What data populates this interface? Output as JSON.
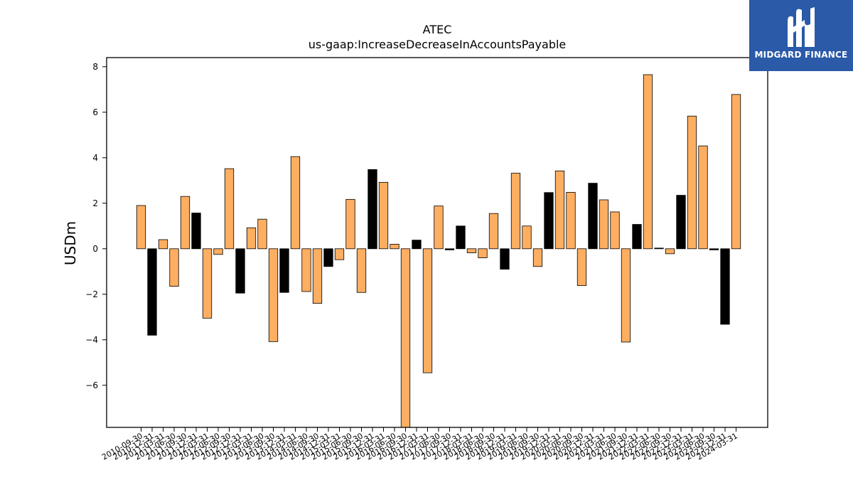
{
  "chart_data": {
    "type": "bar",
    "title": "ATEC",
    "subtitle": "us-gaap:IncreaseDecreaseInAccountsPayable",
    "ylabel": "USDm",
    "ylim": [
      -7.85,
      8.4
    ],
    "yticks": [
      -6,
      -4,
      -2,
      0,
      2,
      4,
      6,
      8
    ],
    "ytick_labels": [
      "−6",
      "−4",
      "−2",
      "0",
      "2",
      "4",
      "6",
      "8"
    ],
    "grid": false,
    "colors": {
      "default": "#fdae61",
      "highlight": "#000000",
      "edge": "#000000"
    },
    "categories": [
      "2010-09-30",
      "2010-12-31",
      "2011-03-31",
      "2011-06-30",
      "2011-09-30",
      "2011-12-31",
      "2012-03-31",
      "2012-06-30",
      "2012-09-30",
      "2012-12-31",
      "2013-03-31",
      "2013-06-30",
      "2013-09-30",
      "2013-12-31",
      "2014-03-31",
      "2014-06-30",
      "2014-09-30",
      "2014-12-31",
      "2015-03-31",
      "2015-06-30",
      "2015-09-30",
      "2015-12-31",
      "2016-03-31",
      "2016-06-30",
      "2016-09-30",
      "2016-12-31",
      "2017-03-31",
      "2017-06-30",
      "2017-09-30",
      "2017-12-31",
      "2018-03-31",
      "2018-06-30",
      "2018-09-30",
      "2018-12-31",
      "2019-03-31",
      "2019-06-30",
      "2019-09-30",
      "2019-12-31",
      "2020-03-31",
      "2020-06-30",
      "2020-09-30",
      "2020-12-31",
      "2021-03-31",
      "2021-06-30",
      "2021-09-30",
      "2021-12-31",
      "2022-03-31",
      "2022-06-30",
      "2022-09-30",
      "2022-12-31",
      "2023-03-31",
      "2023-06-30",
      "2023-09-30",
      "2023-12-31",
      "2024-03-31"
    ],
    "values": [
      1.9,
      -3.8,
      0.4,
      -1.65,
      2.3,
      1.57,
      -3.05,
      -0.25,
      3.52,
      -1.95,
      0.92,
      1.3,
      -4.08,
      -1.92,
      4.05,
      -1.88,
      -2.4,
      -0.78,
      -0.48,
      2.17,
      -1.92,
      3.48,
      2.92,
      0.2,
      -7.85,
      0.38,
      -5.45,
      1.88,
      -0.05,
      1.0,
      -0.18,
      -0.4,
      1.55,
      -0.9,
      3.32,
      1.0,
      -0.78,
      2.47,
      3.42,
      2.48,
      -1.62,
      2.88,
      2.15,
      1.62,
      -4.1,
      1.07,
      7.65,
      0.03,
      -0.22,
      2.35,
      5.83,
      4.52,
      -0.05,
      -3.32,
      6.78
    ],
    "highlight": [
      false,
      true,
      false,
      false,
      false,
      true,
      false,
      false,
      false,
      true,
      false,
      false,
      false,
      true,
      false,
      false,
      false,
      true,
      false,
      false,
      false,
      true,
      false,
      false,
      false,
      true,
      false,
      false,
      true,
      true,
      false,
      false,
      false,
      true,
      false,
      false,
      false,
      true,
      false,
      false,
      false,
      true,
      false,
      false,
      false,
      true,
      false,
      true,
      false,
      true,
      false,
      false,
      true,
      true,
      false
    ]
  },
  "branding": {
    "logo_text": "MIDGARD FINANCE",
    "logo_icon": "midgard-m-logo-icon",
    "logo_background": "#2a5aa8"
  }
}
